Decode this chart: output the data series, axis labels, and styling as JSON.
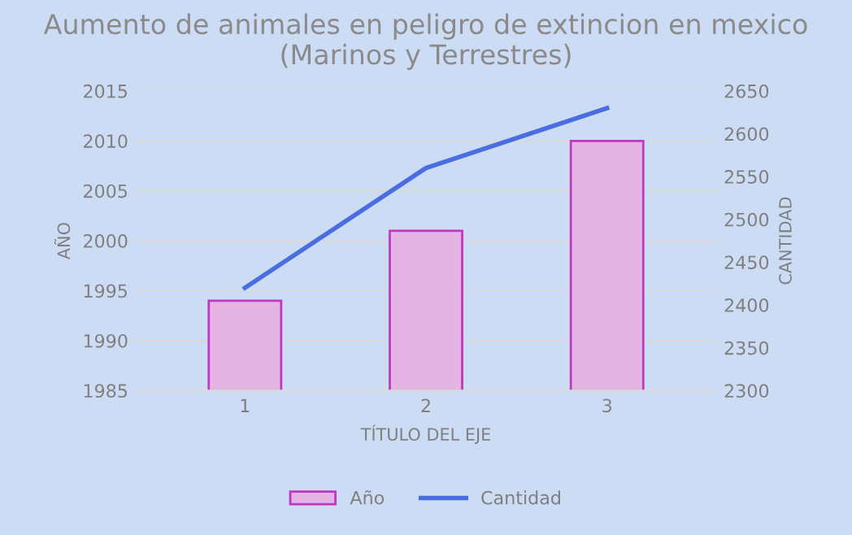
{
  "chart_data": {
    "type": "bar",
    "title": "Aumento de animales en peligro de extincion en mexico (Marinos y Terrestres)",
    "xlabel": "TÍTULO DEL EJE",
    "ylabel": "AÑO",
    "y2label": "CANTIDAD",
    "categories": [
      "1",
      "2",
      "3"
    ],
    "series": [
      {
        "name": "Año",
        "color": "#e4b4e4",
        "values": [
          1994,
          2001,
          2010
        ]
      },
      {
        "name": "Cantidad",
        "type": "line",
        "axis": "y2",
        "color": "#4a6ee0",
        "values": [
          2420,
          2560,
          2630
        ]
      }
    ],
    "ylim": [
      1985,
      2015
    ],
    "yticks": [
      1985,
      1990,
      1995,
      2000,
      2005,
      2010,
      2015
    ],
    "y2lim": [
      2300,
      2650
    ],
    "y2ticks": [
      2300,
      2350,
      2400,
      2450,
      2500,
      2550,
      2600,
      2650
    ],
    "grid": "y",
    "legend": "bottom",
    "marker": "none"
  }
}
